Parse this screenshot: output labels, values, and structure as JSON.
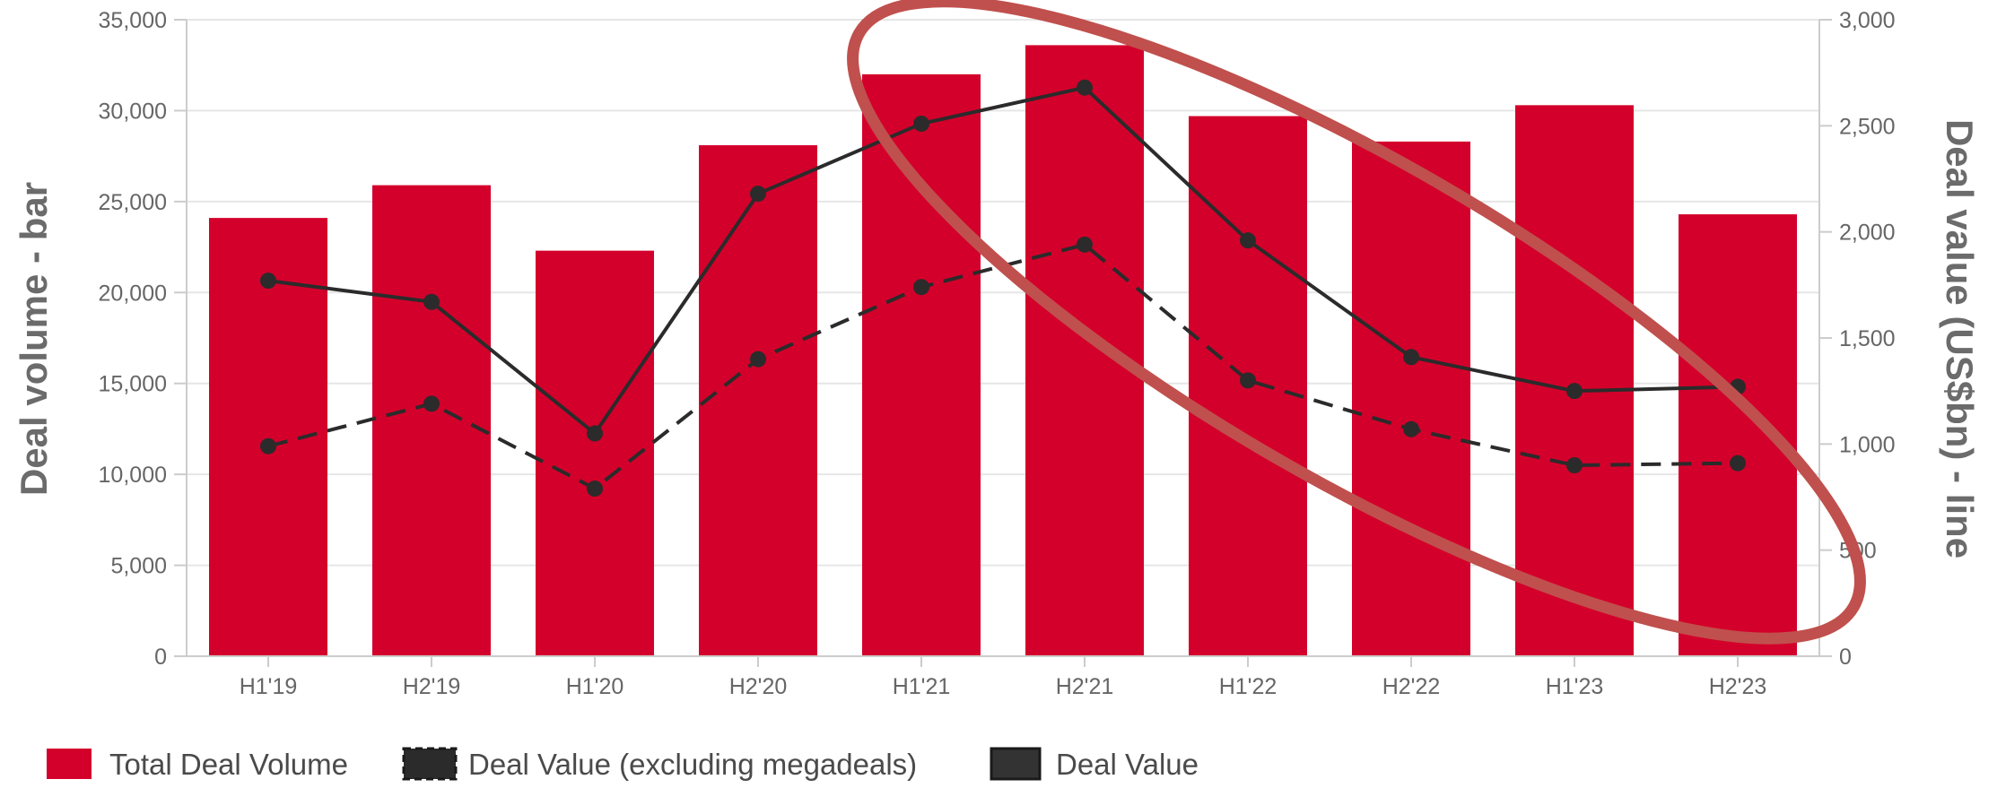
{
  "chart_data": {
    "type": "bar",
    "categories": [
      "H1'19",
      "H2'19",
      "H1'20",
      "H2'20",
      "H1'21",
      "H2'21",
      "H1'22",
      "H2'22",
      "H1'23",
      "H2'23"
    ],
    "series": [
      {
        "name": "Total Deal Volume",
        "type": "bar",
        "axis": "left",
        "color": "#d3002b",
        "values": [
          24100,
          25900,
          22300,
          28100,
          32000,
          33600,
          29700,
          28300,
          30300,
          24300
        ]
      },
      {
        "name": "Deal Value (excluding megadeals)",
        "type": "line",
        "style": "dashed",
        "axis": "right",
        "color": "#2b2b2b",
        "values": [
          990,
          1190,
          790,
          1400,
          1740,
          1940,
          1300,
          1070,
          900,
          910
        ]
      },
      {
        "name": "Deal Value",
        "type": "line",
        "style": "solid",
        "axis": "right",
        "color": "#2b2b2b",
        "values": [
          1770,
          1670,
          1050,
          2180,
          2510,
          2680,
          1960,
          1410,
          1250,
          1270
        ]
      }
    ],
    "left_axis": {
      "label": "Deal volume - bar",
      "ylim": [
        0,
        35000
      ],
      "ticks": [
        "0",
        "5,000",
        "10,000",
        "15,000",
        "20,000",
        "25,000",
        "30,000",
        "35,000"
      ]
    },
    "right_axis": {
      "label": "Deal value (US$bn) - line",
      "ylim": [
        0,
        3000
      ],
      "ticks": [
        "0",
        "500",
        "1,000",
        "1,500",
        "2,000",
        "2,500",
        "3,000"
      ]
    },
    "grid": true,
    "legend_position": "bottom-left",
    "annotation": {
      "shape": "ellipse",
      "color": "#c0504d",
      "target": "H1'21 to H2'23 decline"
    }
  },
  "legend": [
    {
      "label": "Total Deal Volume",
      "swatch": "bar"
    },
    {
      "label": "Deal Value (excluding megadeals)",
      "swatch": "dashed"
    },
    {
      "label": "Deal Value",
      "swatch": "solid"
    }
  ]
}
